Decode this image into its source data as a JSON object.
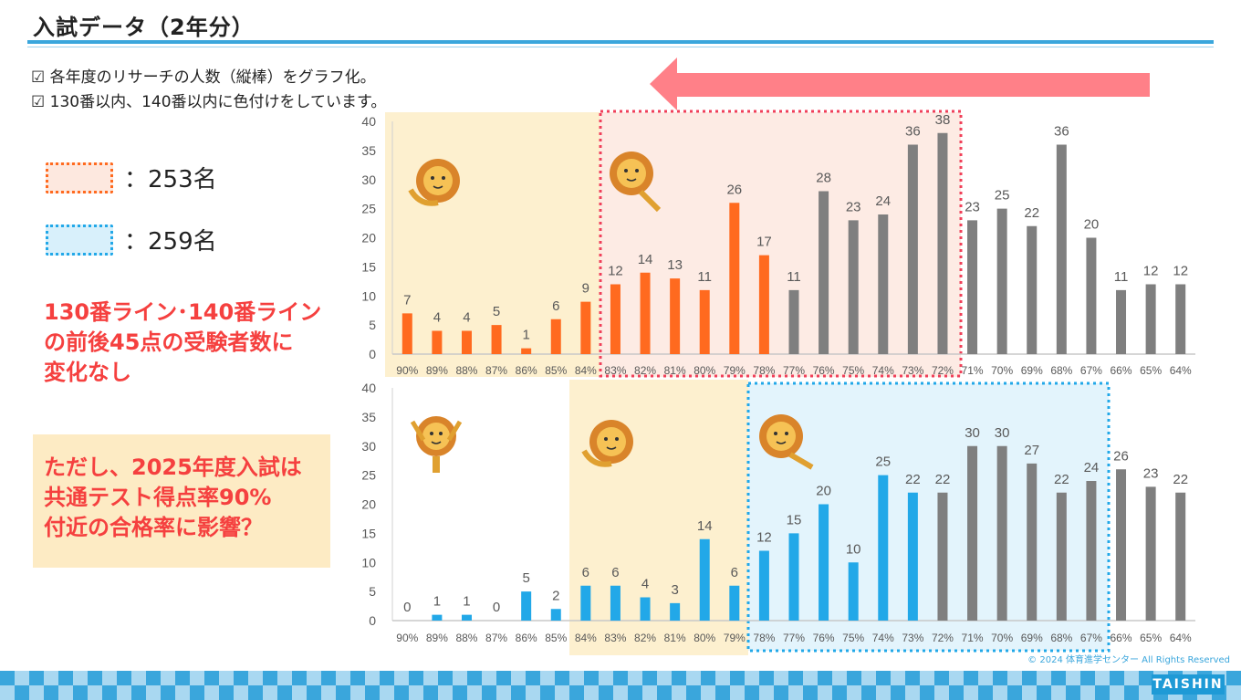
{
  "header": {
    "title": "入試データ（2年分）"
  },
  "bullets": [
    "☑ 各年度のリサーチの人数（縦棒）をグラフ化。",
    "☑ 130番以内、140番以内に色付けをしています。"
  ],
  "legend": [
    {
      "text": "：253名",
      "color": "#ff6a1f"
    },
    {
      "text": "：259名",
      "color": "#22a8e8"
    }
  ],
  "notes": {
    "red": [
      "130番ライン･140番ライン",
      "の前後45点の受験者数に",
      "変化なし"
    ],
    "yellow": [
      "ただし、2025年度入試は",
      "共通テスト得点率90%",
      "付近の合格率に影響？"
    ]
  },
  "footer": {
    "copyright": "© 2024 体育進学センター All Rights Reserved",
    "brand": "TAISHIN"
  },
  "colors": {
    "orange": "#ff6a1f",
    "blue": "#22a8e8",
    "gray": "#7f7f7f",
    "accent": "#3aa6dc",
    "red_text": "#f5403f",
    "arrow": "#ff8088"
  },
  "chart_data": [
    {
      "type": "bar",
      "categories": [
        "90%",
        "89%",
        "88%",
        "87%",
        "86%",
        "85%",
        "84%",
        "83%",
        "82%",
        "81%",
        "80%",
        "79%",
        "78%",
        "77%",
        "76%",
        "75%",
        "74%",
        "73%",
        "72%",
        "71%",
        "70%",
        "69%",
        "68%",
        "67%",
        "66%",
        "65%",
        "64%"
      ],
      "values": [
        7,
        4,
        4,
        5,
        1,
        6,
        9,
        12,
        14,
        13,
        11,
        26,
        17,
        11,
        28,
        23,
        24,
        36,
        38,
        23,
        25,
        22,
        36,
        20,
        11,
        12,
        12
      ],
      "highlighted_count": 13,
      "highlight_color": "#ff6a1f",
      "ylim": [
        0,
        40
      ],
      "yticks": [
        0,
        5,
        10,
        15,
        20,
        25,
        30,
        35,
        40
      ],
      "grid": false
    },
    {
      "type": "bar",
      "categories": [
        "90%",
        "89%",
        "88%",
        "87%",
        "86%",
        "85%",
        "84%",
        "83%",
        "82%",
        "81%",
        "80%",
        "79%",
        "78%",
        "77%",
        "76%",
        "75%",
        "74%",
        "73%",
        "72%",
        "71%",
        "70%",
        "69%",
        "68%",
        "67%",
        "66%",
        "65%",
        "64%"
      ],
      "values": [
        0,
        1,
        1,
        0,
        5,
        2,
        6,
        6,
        4,
        3,
        14,
        6,
        12,
        15,
        20,
        10,
        25,
        22,
        22,
        30,
        30,
        27,
        22,
        24,
        26,
        23,
        22
      ],
      "highlighted_count": 18,
      "highlight_color": "#22a8e8",
      "ylim": [
        0,
        40
      ],
      "yticks": [
        0,
        5,
        10,
        15,
        20,
        25,
        30,
        35,
        40
      ],
      "grid": false
    }
  ]
}
